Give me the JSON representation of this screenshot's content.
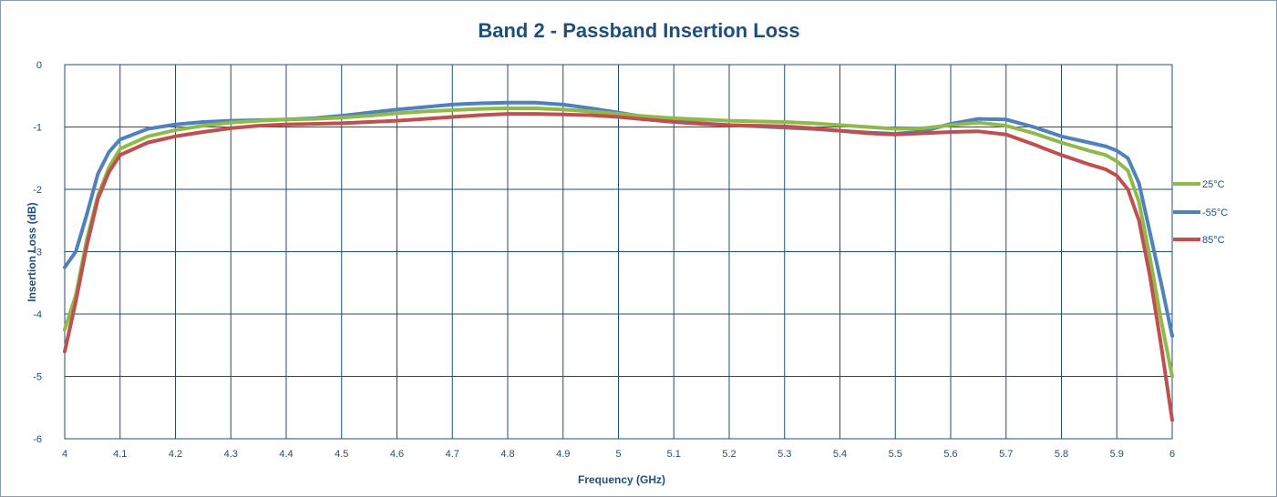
{
  "chart_data": {
    "type": "line",
    "title": "Band 2 - Passband Insertion Loss",
    "xlabel": "Frequency (GHz)",
    "ylabel": "Insertion Loss (dB)",
    "xlim": [
      4,
      6
    ],
    "ylim": [
      -6,
      0
    ],
    "x_ticks": [
      "4",
      "4.1",
      "4.2",
      "4.3",
      "4.4",
      "4.5",
      "4.6",
      "4.7",
      "4.8",
      "4.9",
      "5",
      "5.1",
      "5.2",
      "5.3",
      "5.4",
      "5.5",
      "5.6",
      "5.7",
      "5.8",
      "5.9",
      "6"
    ],
    "y_ticks": [
      "0",
      "-1",
      "-2",
      "-3",
      "-4",
      "-5",
      "-6"
    ],
    "grid": true,
    "legend_position": "right",
    "x": [
      4.0,
      4.02,
      4.04,
      4.06,
      4.08,
      4.1,
      4.15,
      4.2,
      4.25,
      4.3,
      4.35,
      4.4,
      4.45,
      4.5,
      4.55,
      4.6,
      4.65,
      4.7,
      4.75,
      4.8,
      4.85,
      4.9,
      4.95,
      5.0,
      5.05,
      5.1,
      5.15,
      5.2,
      5.25,
      5.3,
      5.35,
      5.4,
      5.45,
      5.5,
      5.55,
      5.6,
      5.65,
      5.7,
      5.75,
      5.8,
      5.85,
      5.88,
      5.9,
      5.92,
      5.94,
      5.96,
      5.98,
      6.0
    ],
    "series": [
      {
        "name": "25°C",
        "color": "#8fba4a",
        "values": [
          -4.25,
          -3.7,
          -2.8,
          -2.1,
          -1.65,
          -1.35,
          -1.15,
          -1.05,
          -0.98,
          -0.93,
          -0.9,
          -0.88,
          -0.87,
          -0.85,
          -0.82,
          -0.78,
          -0.75,
          -0.73,
          -0.71,
          -0.7,
          -0.7,
          -0.72,
          -0.75,
          -0.79,
          -0.83,
          -0.86,
          -0.88,
          -0.9,
          -0.91,
          -0.92,
          -0.94,
          -0.97,
          -1.0,
          -1.03,
          -1.02,
          -0.97,
          -0.93,
          -0.98,
          -1.1,
          -1.25,
          -1.38,
          -1.45,
          -1.55,
          -1.7,
          -2.2,
          -3.1,
          -4.1,
          -5.0
        ]
      },
      {
        "name": "-55°C",
        "color": "#4f81bd",
        "values": [
          -3.25,
          -3.0,
          -2.4,
          -1.75,
          -1.4,
          -1.2,
          -1.03,
          -0.96,
          -0.92,
          -0.9,
          -0.89,
          -0.88,
          -0.86,
          -0.82,
          -0.77,
          -0.72,
          -0.68,
          -0.64,
          -0.62,
          -0.61,
          -0.61,
          -0.64,
          -0.7,
          -0.77,
          -0.84,
          -0.9,
          -0.94,
          -0.97,
          -0.99,
          -1.01,
          -1.03,
          -1.06,
          -1.09,
          -1.11,
          -1.07,
          -0.95,
          -0.87,
          -0.88,
          -1.0,
          -1.15,
          -1.25,
          -1.31,
          -1.38,
          -1.5,
          -1.9,
          -2.7,
          -3.5,
          -4.35
        ]
      },
      {
        "name": "85°C",
        "color": "#c0504d",
        "values": [
          -4.6,
          -3.8,
          -2.9,
          -2.15,
          -1.72,
          -1.45,
          -1.25,
          -1.15,
          -1.08,
          -1.02,
          -0.98,
          -0.96,
          -0.95,
          -0.94,
          -0.92,
          -0.9,
          -0.87,
          -0.84,
          -0.81,
          -0.79,
          -0.79,
          -0.8,
          -0.81,
          -0.84,
          -0.88,
          -0.92,
          -0.95,
          -0.97,
          -0.98,
          -0.99,
          -1.02,
          -1.06,
          -1.1,
          -1.12,
          -1.1,
          -1.08,
          -1.07,
          -1.12,
          -1.28,
          -1.45,
          -1.6,
          -1.68,
          -1.78,
          -2.0,
          -2.5,
          -3.4,
          -4.5,
          -5.7
        ]
      }
    ]
  }
}
